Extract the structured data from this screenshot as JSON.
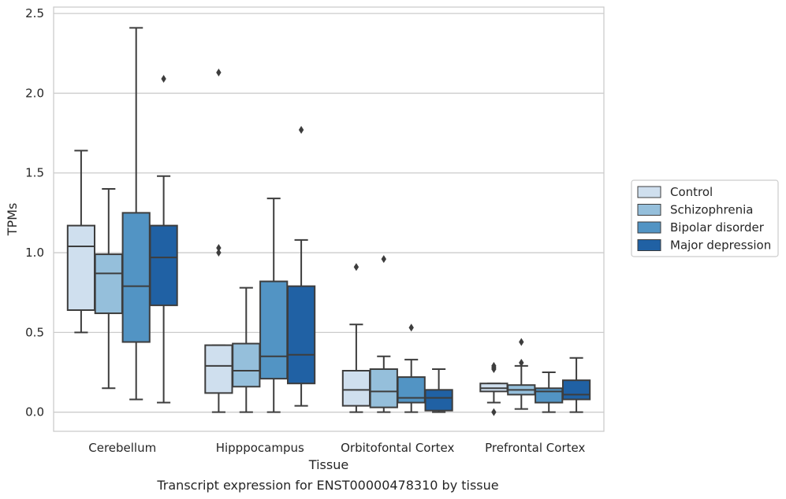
{
  "chart_data": {
    "type": "box",
    "title": "Transcript expression for ENST00000478310 by tissue",
    "xlabel": "Tissue",
    "ylabel": "TPMs",
    "ylim": [
      -0.12,
      2.54
    ],
    "yticks": [
      0.0,
      0.5,
      1.0,
      1.5,
      2.0,
      2.5
    ],
    "ytick_labels": [
      "0.0",
      "0.5",
      "1.0",
      "1.5",
      "2.0",
      "2.5"
    ],
    "grid": "horizontal",
    "legend_position": "right",
    "categories": [
      "Cerebellum",
      "Hipppocampus",
      "Orbitofontal Cortex",
      "Prefrontal Cortex"
    ],
    "series": [
      {
        "name": "Control",
        "color": "#cfdfee",
        "boxes": [
          {
            "whislo": 0.5,
            "q1": 0.64,
            "med": 1.04,
            "q3": 1.17,
            "whishi": 1.64,
            "fliers": []
          },
          {
            "whislo": 0.0,
            "q1": 0.12,
            "med": 0.29,
            "q3": 0.42,
            "whishi": 0.42,
            "fliers": [
              1.0,
              1.03,
              2.13
            ]
          },
          {
            "whislo": 0.0,
            "q1": 0.04,
            "med": 0.14,
            "q3": 0.26,
            "whishi": 0.55,
            "fliers": [
              0.91
            ]
          },
          {
            "whislo": 0.06,
            "q1": 0.13,
            "med": 0.15,
            "q3": 0.18,
            "whishi": 0.18,
            "fliers": [
              0.0,
              0.27,
              0.28,
              0.29
            ]
          }
        ]
      },
      {
        "name": "Schizophrenia",
        "color": "#95bfdb",
        "boxes": [
          {
            "whislo": 0.15,
            "q1": 0.62,
            "med": 0.87,
            "q3": 0.99,
            "whishi": 1.4,
            "fliers": []
          },
          {
            "whislo": 0.0,
            "q1": 0.16,
            "med": 0.26,
            "q3": 0.43,
            "whishi": 0.78,
            "fliers": []
          },
          {
            "whislo": 0.0,
            "q1": 0.03,
            "med": 0.13,
            "q3": 0.27,
            "whishi": 0.35,
            "fliers": [
              0.96
            ]
          },
          {
            "whislo": 0.02,
            "q1": 0.11,
            "med": 0.14,
            "q3": 0.17,
            "whishi": 0.29,
            "fliers": [
              0.31,
              0.44
            ]
          }
        ]
      },
      {
        "name": "Bipolar disorder",
        "color": "#5294c4",
        "boxes": [
          {
            "whislo": 0.08,
            "q1": 0.44,
            "med": 0.79,
            "q3": 1.25,
            "whishi": 2.41,
            "fliers": []
          },
          {
            "whislo": 0.0,
            "q1": 0.21,
            "med": 0.35,
            "q3": 0.82,
            "whishi": 1.34,
            "fliers": []
          },
          {
            "whislo": 0.0,
            "q1": 0.06,
            "med": 0.09,
            "q3": 0.22,
            "whishi": 0.33,
            "fliers": [
              0.53
            ]
          },
          {
            "whislo": 0.0,
            "q1": 0.06,
            "med": 0.13,
            "q3": 0.15,
            "whishi": 0.25,
            "fliers": []
          }
        ]
      },
      {
        "name": "Major depression",
        "color": "#2061a4",
        "boxes": [
          {
            "whislo": 0.06,
            "q1": 0.67,
            "med": 0.97,
            "q3": 1.17,
            "whishi": 1.48,
            "fliers": [
              2.09
            ]
          },
          {
            "whislo": 0.04,
            "q1": 0.18,
            "med": 0.36,
            "q3": 0.79,
            "whishi": 1.08,
            "fliers": [
              1.77
            ]
          },
          {
            "whislo": 0.0,
            "q1": 0.01,
            "med": 0.09,
            "q3": 0.14,
            "whishi": 0.27,
            "fliers": []
          },
          {
            "whislo": 0.0,
            "q1": 0.08,
            "med": 0.11,
            "q3": 0.2,
            "whishi": 0.34,
            "fliers": []
          }
        ]
      }
    ]
  }
}
